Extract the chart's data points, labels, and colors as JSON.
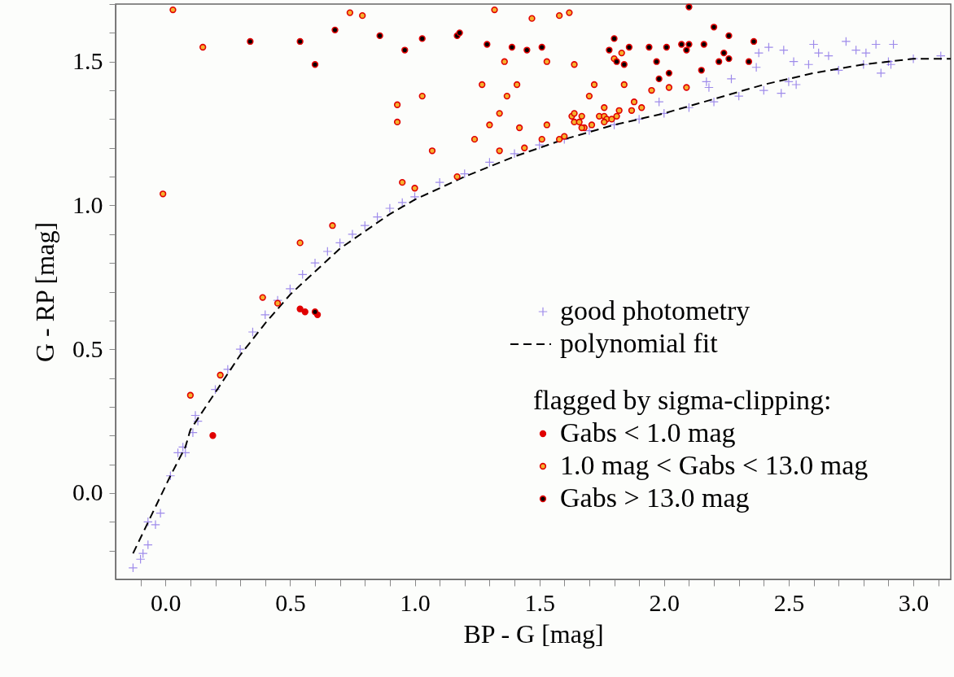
{
  "chart_data": {
    "type": "scatter",
    "xlabel": "BP - G [mag]",
    "ylabel": "G - RP [mag]",
    "legend_title": "flagged by sigma-clipping:",
    "legend": "bottom right",
    "grid": false,
    "xlim": [
      -0.2,
      3.15
    ],
    "ylim": [
      -0.3,
      1.7
    ],
    "xticks": [
      {
        "value": -0.1,
        "label": null
      },
      {
        "value": 0.0,
        "label": "0.0"
      },
      {
        "value": 0.1,
        "label": null
      },
      {
        "value": 0.2,
        "label": null
      },
      {
        "value": 0.3,
        "label": null
      },
      {
        "value": 0.4,
        "label": null
      },
      {
        "value": 0.5,
        "label": "0.5"
      },
      {
        "value": 0.6,
        "label": null
      },
      {
        "value": 0.7,
        "label": null
      },
      {
        "value": 0.8,
        "label": null
      },
      {
        "value": 0.9,
        "label": null
      },
      {
        "value": 1.0,
        "label": "1.0"
      },
      {
        "value": 1.1,
        "label": null
      },
      {
        "value": 1.2,
        "label": null
      },
      {
        "value": 1.3,
        "label": null
      },
      {
        "value": 1.4,
        "label": null
      },
      {
        "value": 1.5,
        "label": "1.5"
      },
      {
        "value": 1.6,
        "label": null
      },
      {
        "value": 1.7,
        "label": null
      },
      {
        "value": 1.8,
        "label": null
      },
      {
        "value": 1.9,
        "label": null
      },
      {
        "value": 2.0,
        "label": "2.0"
      },
      {
        "value": 2.1,
        "label": null
      },
      {
        "value": 2.2,
        "label": null
      },
      {
        "value": 2.3,
        "label": null
      },
      {
        "value": 2.4,
        "label": null
      },
      {
        "value": 2.5,
        "label": "2.5"
      },
      {
        "value": 2.6,
        "label": null
      },
      {
        "value": 2.7,
        "label": null
      },
      {
        "value": 2.8,
        "label": null
      },
      {
        "value": 2.9,
        "label": null
      },
      {
        "value": 3.0,
        "label": "3.0"
      },
      {
        "value": 3.1,
        "label": null
      }
    ],
    "yticks": [
      {
        "value": -0.2,
        "label": null
      },
      {
        "value": -0.1,
        "label": null
      },
      {
        "value": 0.0,
        "label": "0.0"
      },
      {
        "value": 0.1,
        "label": null
      },
      {
        "value": 0.2,
        "label": null
      },
      {
        "value": 0.3,
        "label": null
      },
      {
        "value": 0.4,
        "label": null
      },
      {
        "value": 0.5,
        "label": "0.5"
      },
      {
        "value": 0.6,
        "label": null
      },
      {
        "value": 0.7,
        "label": null
      },
      {
        "value": 0.8,
        "label": null
      },
      {
        "value": 0.9,
        "label": null
      },
      {
        "value": 1.0,
        "label": "1.0"
      },
      {
        "value": 1.1,
        "label": null
      },
      {
        "value": 1.2,
        "label": null
      },
      {
        "value": 1.3,
        "label": null
      },
      {
        "value": 1.4,
        "label": null
      },
      {
        "value": 1.5,
        "label": "1.5"
      },
      {
        "value": 1.6,
        "label": null
      },
      {
        "value": 1.7,
        "label": null
      }
    ],
    "series": [
      {
        "name": "good photometry",
        "type": "scatter",
        "marker": "cross",
        "color": "#6040e0",
        "x": [
          -0.13,
          -0.1,
          -0.09,
          -0.07,
          -0.07,
          -0.04,
          -0.02,
          0.02,
          0.05,
          0.07,
          0.08,
          0.11,
          0.12,
          0.13,
          0.2,
          0.25,
          0.3,
          0.35,
          0.4,
          0.45,
          0.5,
          0.55,
          0.6,
          0.65,
          0.7,
          0.75,
          0.8,
          0.85,
          0.9,
          0.95,
          1.0,
          1.1,
          1.2,
          1.3,
          1.4,
          1.5,
          1.6,
          1.7,
          1.8,
          1.9,
          1.98,
          2.0,
          2.1,
          2.17,
          2.18,
          2.2,
          2.27,
          2.3,
          2.37,
          2.38,
          2.4,
          2.42,
          2.47,
          2.48,
          2.5,
          2.52,
          2.53,
          2.58,
          2.6,
          2.62,
          2.66,
          2.7,
          2.73,
          2.77,
          2.8,
          2.81,
          2.85,
          2.87,
          2.9,
          2.91,
          2.92,
          3.0,
          3.11
        ],
        "values": [
          -0.26,
          -0.23,
          -0.21,
          -0.18,
          -0.1,
          -0.11,
          -0.07,
          0.06,
          0.14,
          0.16,
          0.14,
          0.21,
          0.27,
          0.25,
          0.36,
          0.43,
          0.5,
          0.56,
          0.62,
          0.67,
          0.71,
          0.76,
          0.8,
          0.84,
          0.87,
          0.9,
          0.93,
          0.96,
          0.99,
          1.01,
          1.03,
          1.08,
          1.11,
          1.15,
          1.18,
          1.21,
          1.23,
          1.26,
          1.28,
          1.3,
          1.36,
          1.32,
          1.34,
          1.43,
          1.41,
          1.36,
          1.44,
          1.38,
          1.48,
          1.53,
          1.4,
          1.55,
          1.39,
          1.54,
          1.43,
          1.5,
          1.42,
          1.49,
          1.56,
          1.53,
          1.52,
          1.47,
          1.57,
          1.54,
          1.49,
          1.53,
          1.56,
          1.46,
          1.5,
          1.49,
          1.56,
          1.51,
          1.52
        ]
      },
      {
        "name": "polynomial fit",
        "type": "line",
        "line_style": "dashed",
        "marker": "none",
        "color": "#000000",
        "x": [
          -0.13,
          0.02,
          0.08,
          0.1,
          0.2,
          0.3,
          0.4,
          0.5,
          0.6,
          0.7,
          0.8,
          0.9,
          1.0,
          1.2,
          1.4,
          1.6,
          1.8,
          2.0,
          2.2,
          2.4,
          2.6,
          2.8,
          3.0,
          3.15
        ],
        "values": [
          -0.21,
          0.06,
          0.16,
          0.22,
          0.35,
          0.48,
          0.59,
          0.69,
          0.77,
          0.85,
          0.91,
          0.97,
          1.02,
          1.1,
          1.17,
          1.23,
          1.28,
          1.32,
          1.37,
          1.42,
          1.46,
          1.49,
          1.51,
          1.51
        ]
      },
      {
        "name": "Gabs < 1.0 mag",
        "type": "scatter",
        "marker": "circle",
        "color": "#e00000",
        "x": [
          0.19,
          0.54,
          0.56,
          0.61
        ],
        "values": [
          0.2,
          0.64,
          0.63,
          0.62
        ]
      },
      {
        "name": "1.0 mag < Gabs < 13.0 mag",
        "type": "scatter",
        "marker": "circle",
        "color": "#f5b22e",
        "x": [
          0.03,
          0.15,
          -0.01,
          0.22,
          0.1,
          0.39,
          0.45,
          0.54,
          0.67,
          0.74,
          0.79,
          0.93,
          0.93,
          1.03,
          1.07,
          0.95,
          1.0,
          1.17,
          1.24,
          1.27,
          1.3,
          1.34,
          1.36,
          1.37,
          1.41,
          1.42,
          1.34,
          1.44,
          1.32,
          1.47,
          1.58,
          1.62,
          1.53,
          1.64,
          1.72,
          1.7,
          1.53,
          1.51,
          1.58,
          1.6,
          1.63,
          1.64,
          1.67,
          1.64,
          1.66,
          1.68,
          1.67,
          1.71,
          1.74,
          1.76,
          1.77,
          1.76,
          1.79,
          1.81,
          1.82,
          1.76,
          1.87,
          1.88,
          1.91,
          1.8,
          1.83,
          1.84,
          1.95,
          2.02,
          2.09
        ],
        "values": [
          1.68,
          1.55,
          1.04,
          0.41,
          0.34,
          0.68,
          0.66,
          0.87,
          0.93,
          1.67,
          1.66,
          1.35,
          1.29,
          1.38,
          1.19,
          1.08,
          1.06,
          1.1,
          1.23,
          1.42,
          1.28,
          1.32,
          1.5,
          1.38,
          1.42,
          1.27,
          1.19,
          1.2,
          1.68,
          1.65,
          1.66,
          1.67,
          1.5,
          1.49,
          1.42,
          1.38,
          1.28,
          1.23,
          1.23,
          1.24,
          1.31,
          1.32,
          1.31,
          1.29,
          1.29,
          1.27,
          1.27,
          1.28,
          1.31,
          1.31,
          1.3,
          1.29,
          1.3,
          1.31,
          1.33,
          1.34,
          1.33,
          1.36,
          1.34,
          1.51,
          1.53,
          1.42,
          1.4,
          1.41,
          1.41
        ]
      },
      {
        "name": "Gabs > 13.0 mag",
        "type": "scatter",
        "marker": "circle",
        "color": "#000000",
        "x": [
          0.6,
          0.34,
          0.54,
          0.6,
          0.68,
          0.86,
          0.96,
          1.03,
          1.17,
          1.18,
          1.29,
          1.39,
          1.45,
          1.51,
          1.8,
          1.78,
          1.81,
          1.84,
          1.86,
          1.94,
          2.01,
          1.97,
          1.98,
          2.02,
          2.07,
          2.1,
          2.09,
          2.1,
          2.16,
          2.15,
          2.2,
          2.26,
          2.24,
          2.26,
          2.22,
          2.34,
          2.36
        ],
        "values": [
          0.63,
          1.57,
          1.57,
          1.49,
          1.61,
          1.59,
          1.54,
          1.58,
          1.59,
          1.6,
          1.56,
          1.55,
          1.54,
          1.55,
          1.58,
          1.54,
          1.5,
          1.49,
          1.55,
          1.55,
          1.55,
          1.5,
          1.44,
          1.46,
          1.56,
          1.56,
          1.54,
          1.69,
          1.56,
          1.47,
          1.62,
          1.59,
          1.53,
          1.51,
          1.5,
          1.5,
          1.57
        ]
      }
    ]
  }
}
